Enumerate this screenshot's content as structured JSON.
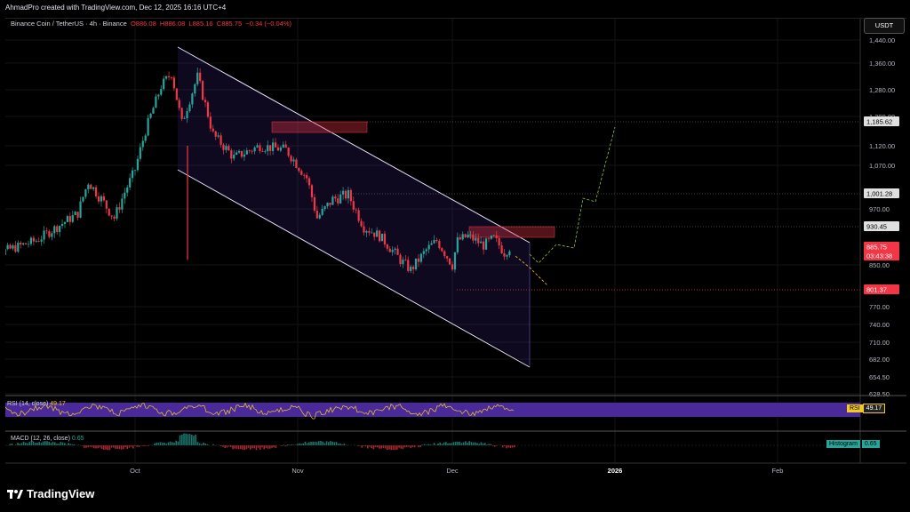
{
  "credit": "AhmadPro created with TradingView.com, Dec 12, 2025 16:16 UTC+4",
  "legend": {
    "symbol": "Binance Coin / TetherUS · 4h · Binance",
    "o_label": "O",
    "o": "886.08",
    "h_label": "H",
    "h": "886.08",
    "l_label": "L",
    "l": "885.16",
    "c_label": "C",
    "c": "885.75",
    "change": "−0.34 (−0.04%)"
  },
  "currency": "USDT",
  "footer": "TradingView",
  "colors": {
    "up": "#26a69a",
    "down": "#f23645",
    "channel": "#7c4dff",
    "rsi": "#f0c929",
    "rsi_band": "#4a2a9a"
  },
  "chart_data": {
    "type": "candlestick",
    "y_ticks": [
      "1,440.00",
      "1,360.00",
      "1,280.00",
      "1,200.00",
      "1,120.00",
      "1,070.00",
      "970.00",
      "850.00",
      "770.00",
      "740.00",
      "710.00",
      "682.00",
      "654.50",
      "628.50"
    ],
    "x_ticks": [
      "Oct",
      "Nov",
      "Dec",
      "2026",
      "Feb"
    ],
    "price_tags": [
      {
        "label": "1,185.62",
        "kind": "level"
      },
      {
        "label": "1,001.28",
        "kind": "level"
      },
      {
        "label": "930.45",
        "kind": "level"
      },
      {
        "label": "885.75",
        "kind": "last"
      },
      {
        "label": "03:43:38",
        "kind": "countdown"
      },
      {
        "label": "801.37",
        "kind": "alert"
      }
    ],
    "series_close_points": [
      {
        "t": "Sep 1",
        "p": 860
      },
      {
        "t": "Sep 12",
        "p": 900
      },
      {
        "t": "Sep 20",
        "p": 960
      },
      {
        "t": "Sep 22",
        "p": 1030
      },
      {
        "t": "Sep 27",
        "p": 950
      },
      {
        "t": "Oct 1",
        "p": 1060
      },
      {
        "t": "Oct 3",
        "p": 1160
      },
      {
        "t": "Oct 6",
        "p": 1290
      },
      {
        "t": "Oct 8",
        "p": 1330
      },
      {
        "t": "Oct 10",
        "p": 1180
      },
      {
        "t": "Oct 13",
        "p": 1320
      },
      {
        "t": "Oct 16",
        "p": 1150
      },
      {
        "t": "Oct 20",
        "p": 1090
      },
      {
        "t": "Oct 25",
        "p": 1120
      },
      {
        "t": "Oct 30",
        "p": 1110
      },
      {
        "t": "Nov 3",
        "p": 1040
      },
      {
        "t": "Nov 5",
        "p": 950
      },
      {
        "t": "Nov 8",
        "p": 990
      },
      {
        "t": "Nov 11",
        "p": 1000
      },
      {
        "t": "Nov 14",
        "p": 930
      },
      {
        "t": "Nov 17",
        "p": 910
      },
      {
        "t": "Nov 21",
        "p": 860
      },
      {
        "t": "Nov 23",
        "p": 840
      },
      {
        "t": "Nov 26",
        "p": 880
      },
      {
        "t": "Nov 28",
        "p": 900
      },
      {
        "t": "Dec 1",
        "p": 850
      },
      {
        "t": "Dec 2",
        "p": 900
      },
      {
        "t": "Dec 4",
        "p": 910
      },
      {
        "t": "Dec 7",
        "p": 890
      },
      {
        "t": "Dec 9",
        "p": 905
      },
      {
        "t": "Dec 11",
        "p": 875
      },
      {
        "t": "Dec 12",
        "p": 885.75
      }
    ],
    "rsi": {
      "label": "RSI (14, close)",
      "value": "49.17",
      "tag": "RSI"
    },
    "macd": {
      "label": "MACD (12, 26, close)",
      "value": "0.65",
      "tag": "Histogram"
    }
  }
}
